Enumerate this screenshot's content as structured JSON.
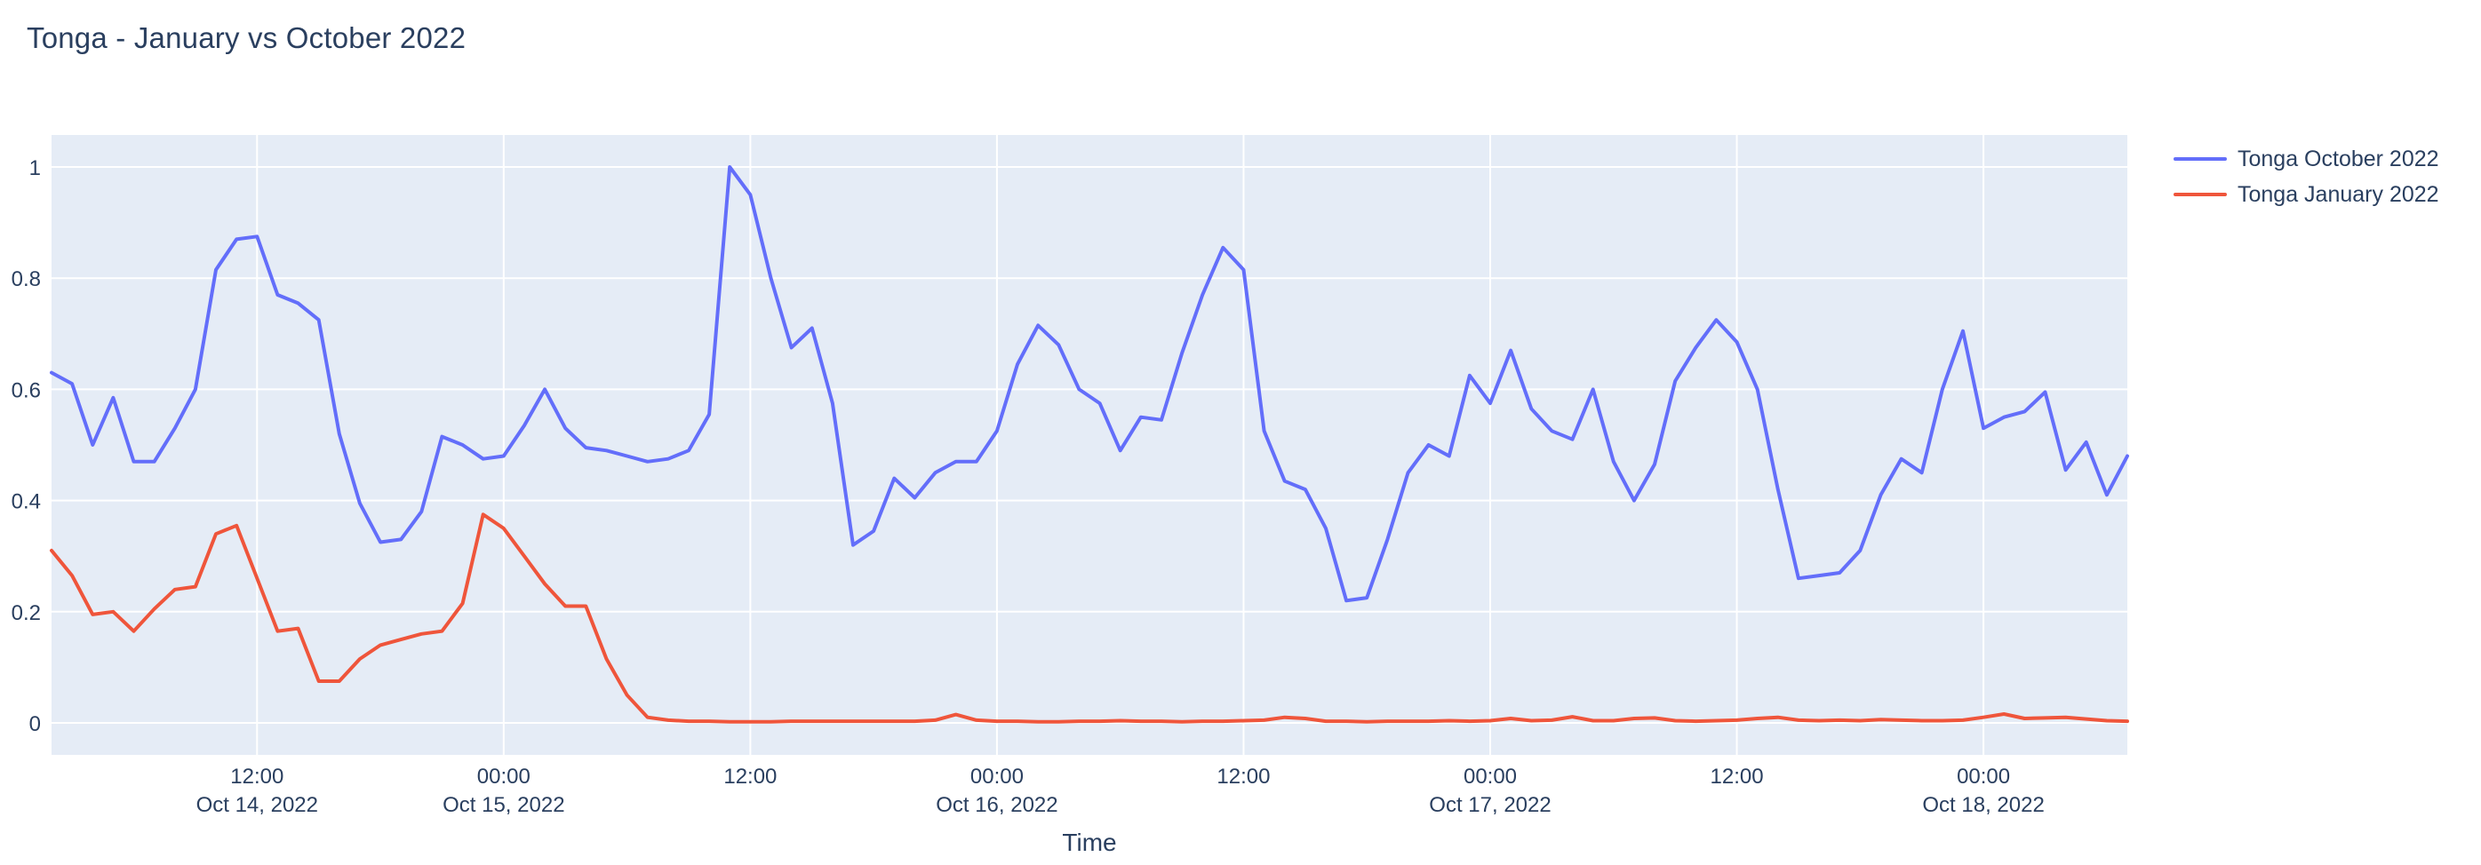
{
  "page": {
    "title": "Tonga - January vs October 2022"
  },
  "chart_data": {
    "type": "line",
    "title": "Tonga - January vs October 2022",
    "xlabel": "Time",
    "ylabel": "",
    "x_start": "2022-10-14 02:00",
    "x_interval": "1 hour",
    "x_end": "2022-10-18 07:00",
    "ylim": [
      -0.058,
      1.058
    ],
    "grid": true,
    "legend_position": "top-right-outside",
    "colors": {
      "plot_background": "#e5ecf6",
      "paper_background": "#ffffff",
      "gridline": "#ffffff",
      "text": "#2a3f5f"
    },
    "yticks": [
      {
        "value": 0,
        "label": "0"
      },
      {
        "value": 0.2,
        "label": "0.2"
      },
      {
        "value": 0.4,
        "label": "0.4"
      },
      {
        "value": 0.6,
        "label": "0.6"
      },
      {
        "value": 0.8,
        "label": "0.8"
      },
      {
        "value": 1,
        "label": "1"
      }
    ],
    "xticks": [
      {
        "index": 10,
        "time": "12:00",
        "date": "Oct 14, 2022"
      },
      {
        "index": 22,
        "time": "00:00",
        "date": "Oct 15, 2022"
      },
      {
        "index": 34,
        "time": "12:00",
        "date": ""
      },
      {
        "index": 46,
        "time": "00:00",
        "date": "Oct 16, 2022"
      },
      {
        "index": 58,
        "time": "12:00",
        "date": ""
      },
      {
        "index": 70,
        "time": "00:00",
        "date": "Oct 17, 2022"
      },
      {
        "index": 82,
        "time": "12:00",
        "date": ""
      },
      {
        "index": 94,
        "time": "00:00",
        "date": "Oct 18, 2022"
      }
    ],
    "series": [
      {
        "name": "Tonga October 2022",
        "color": "#636efa",
        "values": [
          0.63,
          0.61,
          0.5,
          0.585,
          0.47,
          0.47,
          0.53,
          0.6,
          0.815,
          0.87,
          0.875,
          0.77,
          0.755,
          0.725,
          0.52,
          0.395,
          0.325,
          0.33,
          0.38,
          0.515,
          0.5,
          0.475,
          0.48,
          0.535,
          0.6,
          0.53,
          0.495,
          0.49,
          0.48,
          0.47,
          0.475,
          0.49,
          0.555,
          1.0,
          0.95,
          0.8,
          0.675,
          0.71,
          0.575,
          0.32,
          0.345,
          0.44,
          0.405,
          0.45,
          0.47,
          0.47,
          0.525,
          0.645,
          0.715,
          0.68,
          0.6,
          0.575,
          0.49,
          0.55,
          0.545,
          0.665,
          0.77,
          0.855,
          0.815,
          0.525,
          0.435,
          0.42,
          0.35,
          0.22,
          0.225,
          0.33,
          0.45,
          0.5,
          0.48,
          0.625,
          0.575,
          0.67,
          0.565,
          0.525,
          0.51,
          0.6,
          0.47,
          0.4,
          0.465,
          0.615,
          0.675,
          0.725,
          0.685,
          0.6,
          0.42,
          0.26,
          0.265,
          0.27,
          0.31,
          0.41,
          0.475,
          0.45,
          0.6,
          0.705,
          0.53,
          0.55,
          0.56,
          0.595,
          0.455,
          0.505,
          0.41,
          0.48
        ]
      },
      {
        "name": "Tonga January 2022",
        "color": "#ef553b",
        "values": [
          0.31,
          0.265,
          0.195,
          0.2,
          0.165,
          0.205,
          0.24,
          0.245,
          0.34,
          0.355,
          0.26,
          0.165,
          0.17,
          0.075,
          0.075,
          0.115,
          0.14,
          0.15,
          0.16,
          0.165,
          0.215,
          0.375,
          0.35,
          0.3,
          0.25,
          0.21,
          0.21,
          0.115,
          0.05,
          0.01,
          0.005,
          0.003,
          0.003,
          0.002,
          0.002,
          0.002,
          0.003,
          0.003,
          0.003,
          0.003,
          0.003,
          0.003,
          0.003,
          0.005,
          0.015,
          0.005,
          0.003,
          0.003,
          0.002,
          0.002,
          0.003,
          0.003,
          0.004,
          0.003,
          0.003,
          0.002,
          0.003,
          0.003,
          0.004,
          0.005,
          0.01,
          0.008,
          0.003,
          0.003,
          0.002,
          0.003,
          0.003,
          0.003,
          0.004,
          0.003,
          0.004,
          0.008,
          0.004,
          0.005,
          0.011,
          0.004,
          0.004,
          0.008,
          0.009,
          0.004,
          0.003,
          0.004,
          0.005,
          0.008,
          0.01,
          0.005,
          0.004,
          0.005,
          0.004,
          0.006,
          0.005,
          0.004,
          0.004,
          0.005,
          0.01,
          0.016,
          0.008,
          0.009,
          0.01,
          0.007,
          0.004,
          0.003
        ]
      }
    ]
  }
}
